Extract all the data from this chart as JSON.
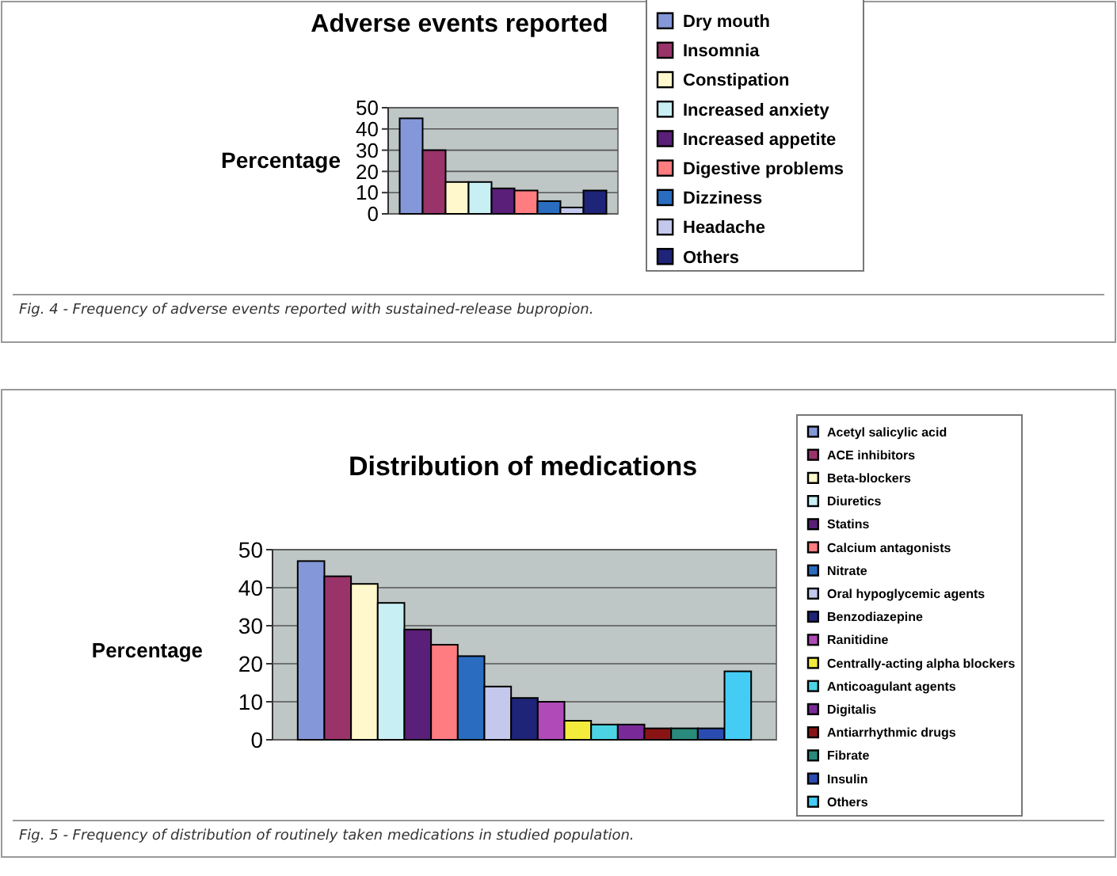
{
  "chart_data": [
    {
      "type": "bar",
      "title": "Adverse events reported",
      "ylabel": "Percentage",
      "categories": [
        null
      ],
      "ylim": [
        0,
        50
      ],
      "yticks": [
        0,
        10,
        20,
        30,
        40,
        50
      ],
      "grid": "y",
      "legend": "right",
      "annotations": [
        "Fig. 4 - Frequency of adverse events reported with sustained-release bupropion."
      ],
      "series": [
        {
          "name": "Dry mouth",
          "color": "#8497d8",
          "values": [
            45
          ]
        },
        {
          "name": "Insomnia",
          "color": "#99336a",
          "values": [
            30
          ]
        },
        {
          "name": "Constipation",
          "color": "#fff8cc",
          "values": [
            15
          ]
        },
        {
          "name": "Increased anxiety",
          "color": "#c8f0f4",
          "values": [
            15
          ]
        },
        {
          "name": "Increased appetite",
          "color": "#5a1f78",
          "values": [
            12
          ]
        },
        {
          "name": "Digestive problems",
          "color": "#ff7c80",
          "values": [
            11
          ]
        },
        {
          "name": "Dizziness",
          "color": "#2a6cc0",
          "values": [
            6
          ]
        },
        {
          "name": "Headache",
          "color": "#c4c8ec",
          "values": [
            3
          ]
        },
        {
          "name": "Others",
          "color": "#1e2478",
          "values": [
            11
          ]
        }
      ]
    },
    {
      "type": "bar",
      "title": "Distribution of medications",
      "ylabel": "Percentage",
      "categories": [
        null
      ],
      "ylim": [
        0,
        50
      ],
      "yticks": [
        0,
        10,
        20,
        30,
        40,
        50
      ],
      "grid": "y",
      "legend": "right",
      "annotations": [
        "Fig. 5 - Frequency of distribution of routinely taken medications in studied population."
      ],
      "series": [
        {
          "name": "Acetyl salicylic acid",
          "color": "#8497d8",
          "values": [
            47
          ]
        },
        {
          "name": "ACE inhibitors",
          "color": "#99336a",
          "values": [
            43
          ]
        },
        {
          "name": "Beta-blockers",
          "color": "#fff8cc",
          "values": [
            41
          ]
        },
        {
          "name": "Diuretics",
          "color": "#c8f0f4",
          "values": [
            36
          ]
        },
        {
          "name": "Statins",
          "color": "#5a1f78",
          "values": [
            29
          ]
        },
        {
          "name": "Calcium antagonists",
          "color": "#ff7c80",
          "values": [
            25
          ]
        },
        {
          "name": "Nitrate",
          "color": "#2a6cc0",
          "values": [
            22
          ]
        },
        {
          "name": "Oral hypoglycemic agents",
          "color": "#c4c8ec",
          "values": [
            14
          ]
        },
        {
          "name": "Benzodiazepine",
          "color": "#1e2478",
          "values": [
            11
          ]
        },
        {
          "name": "Ranitidine",
          "color": "#b04ab8",
          "values": [
            10
          ]
        },
        {
          "name": "Centrally-acting alpha blockers",
          "color": "#f4ec3c",
          "values": [
            5
          ]
        },
        {
          "name": "Anticoagulant agents",
          "color": "#4cd4e4",
          "values": [
            4
          ]
        },
        {
          "name": "Digitalis",
          "color": "#7a2a98",
          "values": [
            4
          ]
        },
        {
          "name": "Antiarrhythmic drugs",
          "color": "#8a1414",
          "values": [
            3
          ]
        },
        {
          "name": "Fibrate",
          "color": "#2a8a7c",
          "values": [
            3
          ]
        },
        {
          "name": "Insulin",
          "color": "#2a4cb0",
          "values": [
            3
          ]
        },
        {
          "name": "Others",
          "color": "#44ccf4",
          "values": [
            18
          ]
        }
      ]
    }
  ]
}
